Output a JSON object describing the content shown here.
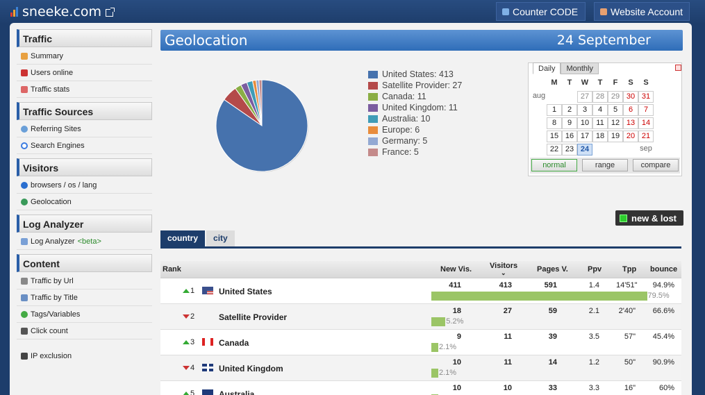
{
  "brand": {
    "name": "sneeke.com",
    "bar_colors": [
      "#e03b2f",
      "#f2a632",
      "#3b82d6"
    ]
  },
  "top_buttons": {
    "counter_code": "Counter CODE",
    "website_account": "Website Account"
  },
  "sidebar": {
    "sections": [
      {
        "title": "Traffic",
        "items": [
          {
            "label": "Summary",
            "icon": "home-icon"
          },
          {
            "label": "Users online",
            "icon": "live-icon"
          },
          {
            "label": "Traffic stats",
            "icon": "chart-icon"
          }
        ]
      },
      {
        "title": "Traffic Sources",
        "items": [
          {
            "label": "Referring Sites",
            "icon": "globe-icon"
          },
          {
            "label": "Search Engines",
            "icon": "google-icon"
          }
        ]
      },
      {
        "title": "Visitors",
        "items": [
          {
            "label": "browsers / os / lang",
            "icon": "info-icon"
          },
          {
            "label": "Geolocation",
            "icon": "earth-icon"
          }
        ]
      },
      {
        "title": "Log Analyzer",
        "items": [
          {
            "label": "Log Analyzer",
            "beta": "<beta>",
            "icon": "code-icon"
          }
        ]
      },
      {
        "title": "Content",
        "items": [
          {
            "label": "Traffic by Url",
            "icon": "link-icon"
          },
          {
            "label": "Traffic by Title",
            "icon": "page-icon"
          },
          {
            "label": "Tags/Variables",
            "icon": "tag-icon"
          },
          {
            "label": "Click count",
            "icon": "cursor-icon"
          }
        ]
      }
    ],
    "ip_exclusion": "IP exclusion"
  },
  "header": {
    "title": "Geolocation",
    "date": "24 September"
  },
  "chart_data": {
    "type": "pie",
    "slices": [
      {
        "label": "United States: 413",
        "value": 413,
        "color": "#4672ad"
      },
      {
        "label": "Satellite Provider: 27",
        "value": 27,
        "color": "#b44a4a"
      },
      {
        "label": "Canada: 11",
        "value": 11,
        "color": "#8aae45"
      },
      {
        "label": "United Kingdom: 11",
        "value": 11,
        "color": "#7b5da0"
      },
      {
        "label": "Australia: 10",
        "value": 10,
        "color": "#3f9cb7"
      },
      {
        "label": "Europe: 6",
        "value": 6,
        "color": "#e88c3c"
      },
      {
        "label": "Germany: 5",
        "value": 5,
        "color": "#93a9d3"
      },
      {
        "label": "France: 5",
        "value": 5,
        "color": "#c48a8a"
      }
    ]
  },
  "calendar": {
    "tabs": [
      "Daily",
      "Monthly"
    ],
    "day_headers": [
      "M",
      "T",
      "W",
      "T",
      "F",
      "S",
      "S"
    ],
    "month_left": "aug",
    "month_right": "sep",
    "rows": [
      [
        "",
        "",
        "27",
        "28",
        "29",
        "30",
        "31"
      ],
      [
        "1",
        "2",
        "3",
        "4",
        "5",
        "6",
        "7"
      ],
      [
        "8",
        "9",
        "10",
        "11",
        "12",
        "13",
        "14"
      ],
      [
        "15",
        "16",
        "17",
        "18",
        "19",
        "20",
        "21"
      ],
      [
        "22",
        "23",
        "24",
        "",
        "",
        "",
        ""
      ]
    ],
    "buttons": [
      "normal",
      "range",
      "compare"
    ]
  },
  "new_lost": "new & lost",
  "tabs": [
    "country",
    "city"
  ],
  "table": {
    "headers": [
      "Rank",
      "New Vis.",
      "Visitors",
      "Pages V.",
      "Ppv",
      "Tpp",
      "bounce"
    ],
    "rows": [
      {
        "rank": "1",
        "dir": "up",
        "name": "United States",
        "new": "411",
        "visitors": "413",
        "pages": "591",
        "ppv": "1.4",
        "tpp": "14'51\"",
        "bounce": "94.9%",
        "share": 79.5,
        "share_label": "79.5%",
        "flag": "us"
      },
      {
        "rank": "2",
        "dir": "down",
        "name": "Satellite Provider",
        "new": "18",
        "visitors": "27",
        "pages": "59",
        "ppv": "2.1",
        "tpp": "2'40\"",
        "bounce": "66.6%",
        "share": 5.2,
        "share_label": "5.2%",
        "flag": "none"
      },
      {
        "rank": "3",
        "dir": "up",
        "name": "Canada",
        "new": "9",
        "visitors": "11",
        "pages": "39",
        "ppv": "3.5",
        "tpp": "57\"",
        "bounce": "45.4%",
        "share": 2.1,
        "share_label": "2.1%",
        "flag": "ca"
      },
      {
        "rank": "4",
        "dir": "down",
        "name": "United Kingdom",
        "new": "10",
        "visitors": "11",
        "pages": "14",
        "ppv": "1.2",
        "tpp": "50\"",
        "bounce": "90.9%",
        "share": 2.1,
        "share_label": "2.1%",
        "flag": "uk"
      },
      {
        "rank": "5",
        "dir": "up",
        "name": "Australia",
        "new": "10",
        "visitors": "10",
        "pages": "33",
        "ppv": "3.3",
        "tpp": "16\"",
        "bounce": "60%",
        "share": 1.9,
        "share_label": "",
        "flag": "au"
      }
    ]
  }
}
